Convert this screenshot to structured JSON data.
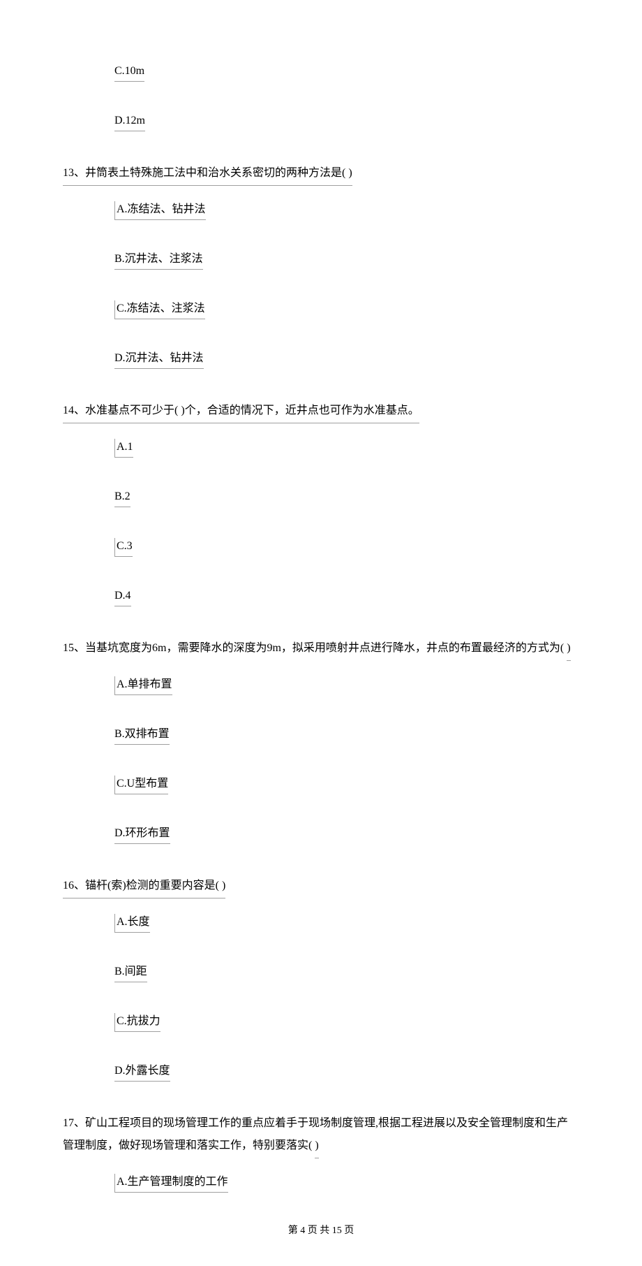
{
  "options_12": {
    "c": "C.10m",
    "d": "D.12m"
  },
  "question_13": {
    "number": "13、",
    "text_part1": "井筒表土特殊施工法中和治水关系密切的两种方法是(",
    "blank": "    ",
    "text_part2": ")",
    "options": {
      "a": "A.冻结法、钻井法",
      "b": "B.沉井法、注浆法",
      "c": "C.冻结法、注浆法",
      "d": "D.沉井法、钻井法"
    }
  },
  "question_14": {
    "number": "14、",
    "text_part1": "水准基点不可少于(",
    "blank": "    ",
    "text_part2": ")个，合适的情况下，近井点也可作为水准基点。",
    "options": {
      "a": "A.1 ",
      "b": "B.2 ",
      "c": "C.3 ",
      "d": "D.4 "
    }
  },
  "question_15": {
    "number": "15、",
    "text_part1": "当基坑宽度为6m，需要降水的深度为9m，拟采用喷射井点进行降水，井点的布置最经济的方式为(",
    "blank": "    ",
    "text_part2": ")",
    "options": {
      "a": "A.单排布置",
      "b": "B.双排布置",
      "c": "C.U型布置",
      "d": "D.环形布置"
    }
  },
  "question_16": {
    "number": "16、",
    "text_part1": "锚杆(索)检测的重要内容是(",
    "blank": "    ",
    "text_part2": ")",
    "options": {
      "a": "A.长度",
      "b": "B.间距",
      "c": "C.抗拔力",
      "d": "D.外露长度"
    }
  },
  "question_17": {
    "number": "17、",
    "text_part1": "矿山工程项目的现场管理工作的重点应着手于现场制度管理,根据工程进展以及安全管理制度和生产管理制度，做好现场管理和落实工作，特别要落实(",
    "blank": "    ",
    "text_part2": ")",
    "options": {
      "a": "A.生产管理制度的工作"
    }
  },
  "footer": "第 4 页 共 15 页"
}
